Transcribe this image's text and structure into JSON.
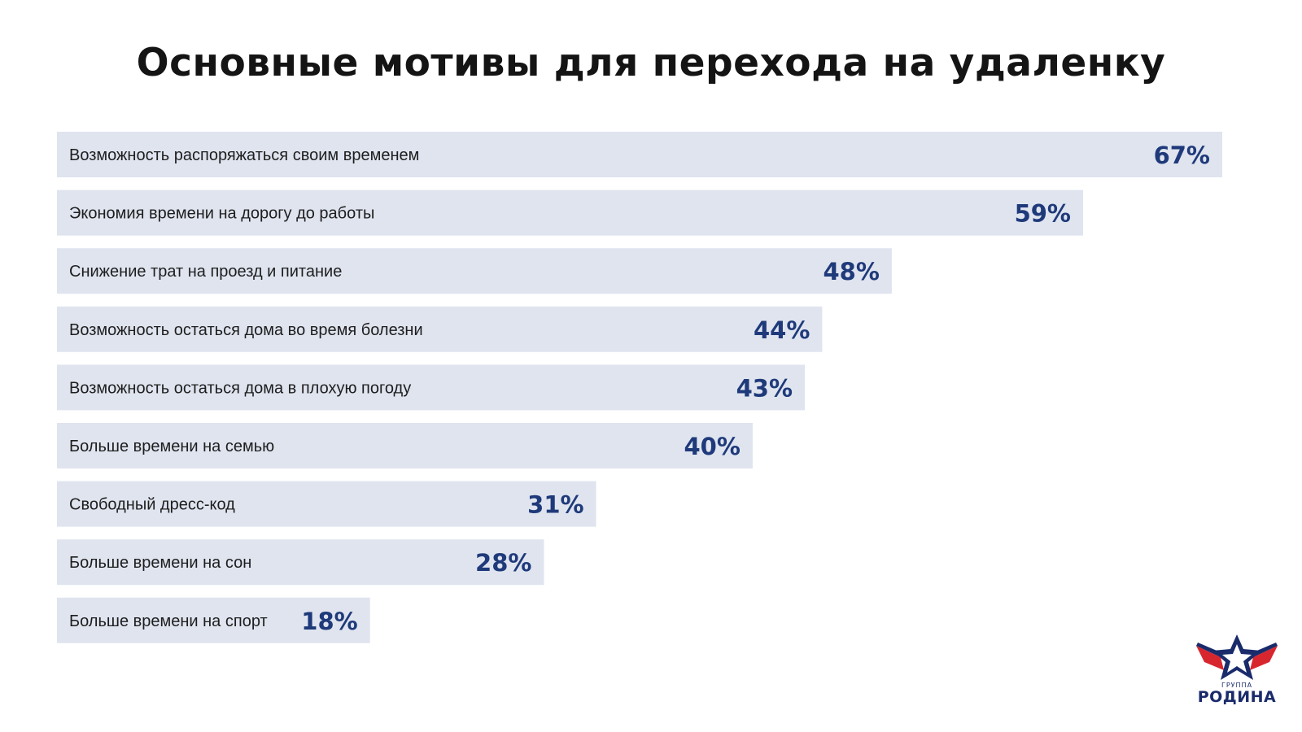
{
  "chart_data": {
    "type": "bar",
    "orientation": "horizontal",
    "title": "Основные мотивы для перехода на удаленку",
    "categories": [
      "Возможность распоряжаться своим временем",
      "Экономия времени на дорогу до работы",
      "Снижение трат на проезд и питание",
      "Возможность остаться дома во время болезни",
      "Возможность остаться дома в плохую погоду",
      "Больше времени на семью",
      "Свободный дресс-код",
      "Больше времени на сон",
      "Больше времени на спорт"
    ],
    "values": [
      67,
      59,
      48,
      44,
      43,
      40,
      31,
      28,
      18
    ],
    "value_labels": [
      "67%",
      "59%",
      "48%",
      "44%",
      "43%",
      "40%",
      "31%",
      "28%",
      "18%"
    ],
    "unit": "%",
    "xlim": [
      0,
      67
    ],
    "grid": false,
    "legend": "none",
    "colors": {
      "bar": "#dfe4ef",
      "value": "#1f3a7a",
      "category": "#1e1e1e"
    }
  },
  "logo": {
    "small_text": "ГРУППА",
    "big_text": "РОДИНА",
    "colors": {
      "red": "#d8262e",
      "blue": "#1a2b6b",
      "white": "#ffffff"
    }
  }
}
